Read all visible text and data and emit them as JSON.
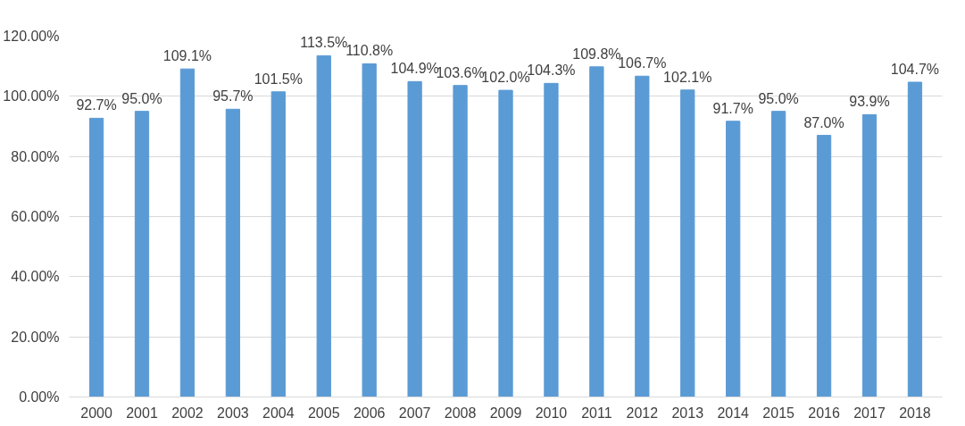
{
  "chart_data": {
    "type": "bar",
    "categories": [
      "2000",
      "2001",
      "2002",
      "2003",
      "2004",
      "2005",
      "2006",
      "2007",
      "2008",
      "2009",
      "2010",
      "2011",
      "2012",
      "2013",
      "2014",
      "2015",
      "2016",
      "2017",
      "2018"
    ],
    "values": [
      92.7,
      95.0,
      109.1,
      95.7,
      101.5,
      113.5,
      110.8,
      104.9,
      103.6,
      102.0,
      104.3,
      109.8,
      106.7,
      102.1,
      91.7,
      95.0,
      87.0,
      93.9,
      104.7
    ],
    "value_labels": [
      "92.7%",
      "95.0%",
      "109.1%",
      "95.7%",
      "101.5%",
      "113.5%",
      "110.8%",
      "104.9%",
      "103.6%",
      "102.0%",
      "104.3%",
      "109.8%",
      "106.7%",
      "102.1%",
      "91.7%",
      "95.0%",
      "87.0%",
      "93.9%",
      "104.7%"
    ],
    "color": "#5b9bd5",
    "ylim": [
      0,
      120
    ],
    "yticks": [
      {
        "value": 0,
        "label": "0.00%"
      },
      {
        "value": 20,
        "label": "20.00%"
      },
      {
        "value": 40,
        "label": "40.00%"
      },
      {
        "value": 60,
        "label": "60.00%"
      },
      {
        "value": 80,
        "label": "80.00%"
      },
      {
        "value": 100,
        "label": "100.00%"
      },
      {
        "value": 120,
        "label": "120.00%"
      }
    ],
    "grid": "y"
  }
}
